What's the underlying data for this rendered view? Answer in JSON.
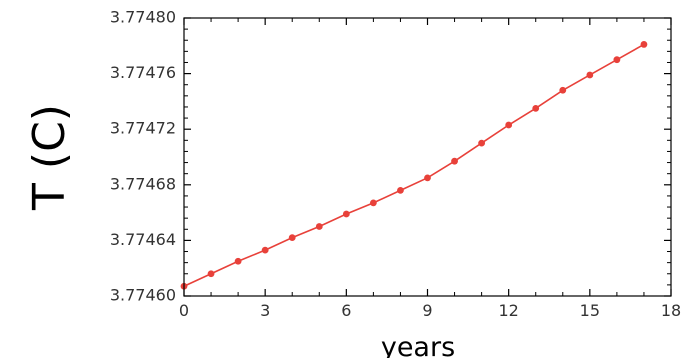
{
  "chart_data": {
    "type": "line",
    "xlabel": "years",
    "ylabel": "T (C)",
    "xlim": [
      0,
      18
    ],
    "ylim": [
      3.7746,
      3.7748
    ],
    "xticks": [
      0,
      3,
      6,
      9,
      12,
      15,
      18
    ],
    "xtick_labels": [
      "0",
      "3",
      "6",
      "9",
      "12",
      "15",
      "18"
    ],
    "yticks": [
      3.7746,
      3.77464,
      3.77468,
      3.77472,
      3.77476,
      3.7748
    ],
    "ytick_labels": [
      "3.77460",
      "3.77464",
      "3.77468",
      "3.77472",
      "3.77476",
      "3.77480"
    ],
    "grid": false,
    "series_color": "#e8413a",
    "series": [
      {
        "x": [
          0,
          1,
          2,
          3,
          4,
          5,
          6,
          7,
          8,
          9,
          10,
          11,
          12,
          13,
          14,
          15,
          16,
          17
        ],
        "values": [
          3.774607,
          3.774616,
          3.774625,
          3.774633,
          3.774642,
          3.77465,
          3.774659,
          3.774667,
          3.774676,
          3.774685,
          3.774697,
          3.77471,
          3.774723,
          3.774735,
          3.774748,
          3.774759,
          3.77477,
          3.774781
        ]
      }
    ]
  }
}
